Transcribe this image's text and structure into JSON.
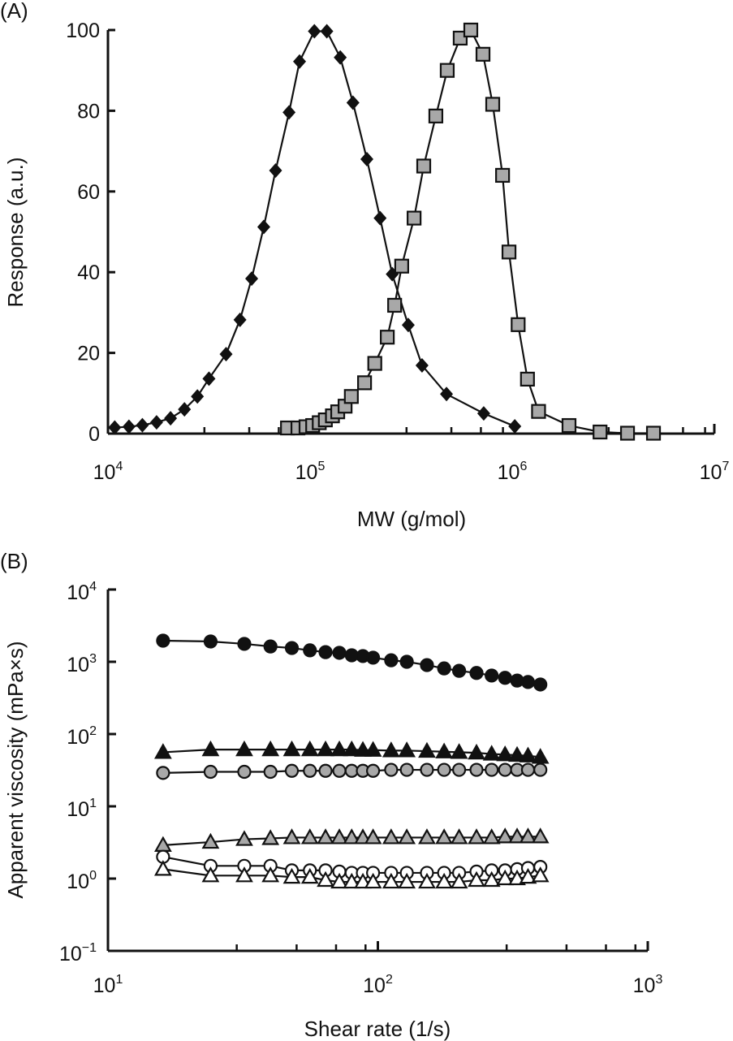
{
  "chart_data": [
    {
      "panel_label": "(A)",
      "type": "line",
      "xlabel": "MW (g/mol)",
      "ylabel": "Response (a.u.)",
      "xscale": "log",
      "xlim": [
        10000,
        10000000
      ],
      "ylim": [
        0,
        100
      ],
      "xticks": [
        {
          "base": "10",
          "exp": "4"
        },
        {
          "base": "10",
          "exp": "5"
        },
        {
          "base": "10",
          "exp": "6"
        },
        {
          "base": "10",
          "exp": "7"
        }
      ],
      "yticks": [
        "0",
        "20",
        "40",
        "60",
        "80",
        "100"
      ],
      "grid": false,
      "series": [
        {
          "marker": "diamond",
          "fill": "#111111",
          "x": [
            10800,
            12700,
            14800,
            17400,
            20400,
            23900,
            27700,
            31600,
            38400,
            45000,
            51400,
            59000,
            67500,
            78700,
            88700,
            105000,
            121000,
            141000,
            163000,
            191000,
            222000,
            255000,
            306000,
            358000,
            473000,
            723000,
            1030000
          ],
          "y": [
            1.5,
            1.7,
            2.1,
            2.8,
            3.8,
            6.0,
            9.2,
            13.6,
            19.7,
            28.2,
            38.4,
            51.2,
            65.2,
            79.6,
            92.2,
            99.7,
            99.7,
            93.2,
            82,
            68,
            53.4,
            39.5,
            26.9,
            16.9,
            9.8,
            5.0,
            1.8
          ]
        },
        {
          "marker": "square",
          "fill": "#a8a8a8",
          "x": [
            77300,
            87100,
            95500,
            103000,
            111000,
            119000,
            129000,
            137000,
            149000,
            160000,
            186000,
            209000,
            241000,
            262000,
            284000,
            327000,
            365000,
            419000,
            477000,
            553000,
            624000,
            717000,
            801000,
            896000,
            964000,
            1070000,
            1190000,
            1350000,
            1910000,
            2720000,
            3720000,
            5000000
          ],
          "y": [
            1.4,
            1.4,
            1.7,
            2.0,
            2.7,
            3.4,
            4.4,
            5.4,
            6.8,
            9.2,
            12.6,
            17.4,
            23.9,
            31.8,
            41.5,
            53.4,
            66.3,
            78.7,
            90,
            98,
            100,
            94,
            81.6,
            64,
            45,
            27,
            13.5,
            5.5,
            2,
            0.4,
            0.1,
            0.1
          ]
        }
      ]
    },
    {
      "panel_label": "(B)",
      "type": "line",
      "xlabel": "Shear rate (1/s)",
      "ylabel": "Apparent viscosity (mPa×s)",
      "xscale": "log",
      "yscale": "log",
      "xlim": [
        10,
        1000
      ],
      "ylim": [
        0.1,
        10000
      ],
      "xticks": [
        {
          "base": "10",
          "exp": "1"
        },
        {
          "base": "10",
          "exp": "2"
        },
        {
          "base": "10",
          "exp": "3"
        }
      ],
      "yticks": [
        {
          "base": "10",
          "exp": "4"
        },
        {
          "base": "10",
          "exp": "3"
        },
        {
          "base": "10",
          "exp": "2"
        },
        {
          "base": "10",
          "exp": "1"
        },
        {
          "base": "10",
          "exp": "0"
        },
        {
          "base": "10",
          "exp": "−1"
        }
      ],
      "grid": false,
      "x": [
        16,
        24,
        32,
        40,
        48,
        56,
        64,
        72,
        80,
        88,
        96,
        112,
        128,
        152,
        176,
        200,
        232,
        264,
        296,
        328,
        360,
        400
      ],
      "series": [
        {
          "marker": "circle",
          "fill": "#111111",
          "y": [
            1960,
            1910,
            1770,
            1630,
            1550,
            1440,
            1360,
            1330,
            1230,
            1200,
            1140,
            1050,
            1000,
            900,
            810,
            750,
            700,
            645,
            600,
            550,
            525,
            485
          ]
        },
        {
          "marker": "triangle",
          "fill": "#111111",
          "y": [
            56,
            61,
            61,
            61,
            61,
            61,
            61,
            61,
            61,
            60,
            60,
            59,
            59,
            58,
            57,
            56,
            55,
            53,
            52,
            51,
            50,
            48
          ]
        },
        {
          "marker": "circle",
          "fill": "#a8a8a8",
          "y": [
            29,
            30,
            30,
            30,
            31,
            31,
            31,
            31,
            31,
            31,
            31,
            32,
            32,
            32,
            32,
            32,
            32,
            32,
            32,
            32,
            32,
            32
          ]
        },
        {
          "marker": "triangle",
          "fill": "#a8a8a8",
          "y": [
            2.9,
            3.2,
            3.5,
            3.6,
            3.7,
            3.7,
            3.7,
            3.7,
            3.7,
            3.7,
            3.7,
            3.7,
            3.7,
            3.7,
            3.7,
            3.7,
            3.7,
            3.7,
            3.8,
            3.8,
            3.8,
            3.8
          ]
        },
        {
          "marker": "circle",
          "fill": "#ffffff",
          "y": [
            2.0,
            1.5,
            1.5,
            1.5,
            1.3,
            1.3,
            1.3,
            1.25,
            1.2,
            1.2,
            1.2,
            1.2,
            1.2,
            1.2,
            1.2,
            1.2,
            1.25,
            1.3,
            1.3,
            1.35,
            1.4,
            1.45
          ]
        },
        {
          "marker": "triangle",
          "fill": "#ffffff",
          "y": [
            1.35,
            1.1,
            1.1,
            1.1,
            1.05,
            1.05,
            0.95,
            0.9,
            0.9,
            0.9,
            0.9,
            0.9,
            0.9,
            0.9,
            0.9,
            0.9,
            0.95,
            0.95,
            1.0,
            1.0,
            1.05,
            1.1
          ]
        }
      ]
    }
  ]
}
